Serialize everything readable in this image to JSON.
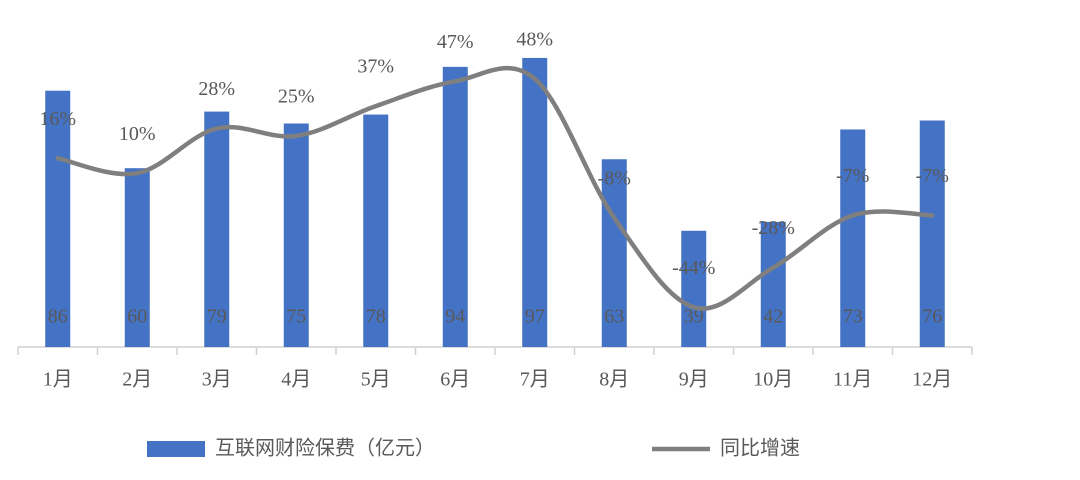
{
  "chart_data": {
    "type": "bar",
    "categories": [
      "1月",
      "2月",
      "3月",
      "4月",
      "5月",
      "6月",
      "7月",
      "8月",
      "9月",
      "10月",
      "11月",
      "12月"
    ],
    "series": [
      {
        "name": "互联网财险保费（亿元）",
        "type": "bar",
        "color": "#4472c4",
        "values": [
          86,
          60,
          79,
          75,
          78,
          94,
          97,
          63,
          39,
          42,
          73,
          76
        ]
      },
      {
        "name": "同比增速",
        "type": "line",
        "axis": "y2",
        "color": "#7f7f7f",
        "values": [
          16,
          10,
          28,
          25,
          37,
          47,
          48,
          -8,
          -44,
          -28,
          -7,
          -7
        ],
        "value_labels": [
          "16%",
          "10%",
          "28%",
          "25%",
          "37%",
          "47%",
          "48%",
          "-8%",
          "-44%",
          "-28%",
          "-7%",
          "-7%"
        ]
      }
    ],
    "ylim": [
      0,
      100
    ],
    "y2lim": [
      -60,
      60
    ],
    "legend": "bottom"
  }
}
